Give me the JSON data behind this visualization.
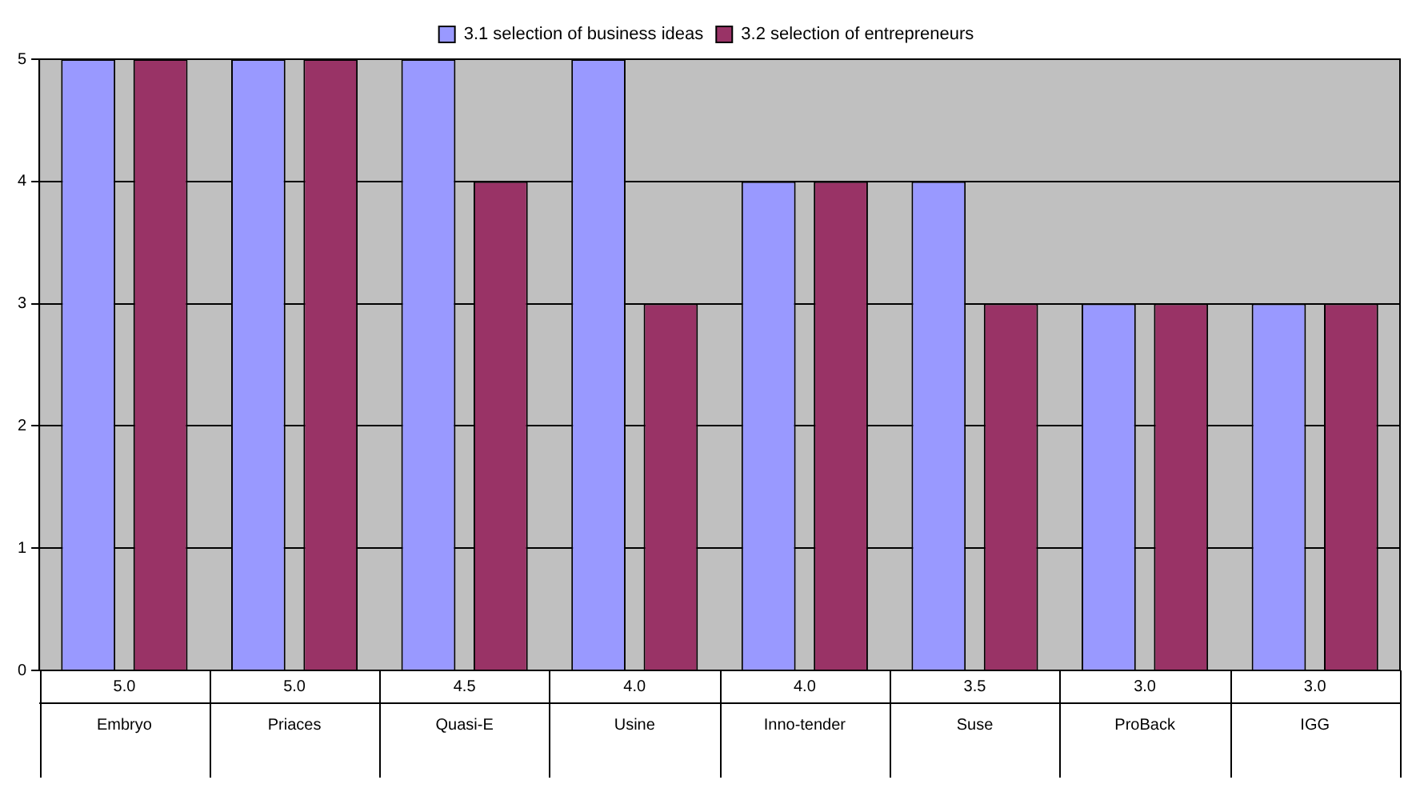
{
  "chart_data": {
    "type": "bar",
    "categories": [
      "Embryo",
      "Priaces",
      "Quasi-E",
      "Usine",
      "Inno-tender",
      "Suse",
      "ProBack",
      "IGG"
    ],
    "series": [
      {
        "name": "3.1 selection of business ideas",
        "color": "#9999ff",
        "values": [
          5,
          5,
          5,
          5,
          4,
          4,
          3,
          3
        ]
      },
      {
        "name": "3.2 selection of entrepreneurs",
        "color": "#993366",
        "values": [
          5,
          5,
          4,
          3,
          4,
          3,
          3,
          3
        ]
      }
    ],
    "annotations": [
      "5.0",
      "5.0",
      "4.5",
      "4.0",
      "4.0",
      "3.5",
      "3.0",
      "3.0"
    ],
    "ylim": [
      0,
      5
    ],
    "yticks": [
      0,
      1,
      2,
      3,
      4,
      5
    ],
    "grid": "y",
    "legend": "top"
  }
}
